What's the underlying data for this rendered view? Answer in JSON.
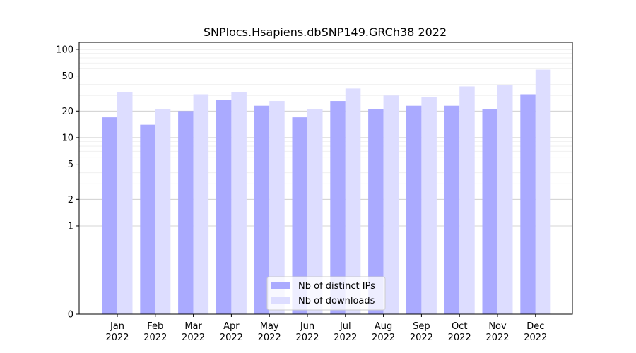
{
  "chart_data": {
    "type": "bar",
    "title": "SNPlocs.Hsapiens.dbSNP149.GRCh38 2022",
    "xlabel": "",
    "ylabel": "",
    "yscale": "symlog",
    "ylim": [
      0,
      120
    ],
    "yticks": [
      0,
      1,
      2,
      5,
      10,
      20,
      50,
      100
    ],
    "grid": "horizontal",
    "legend_position": "bottom-center",
    "categories": [
      [
        "Jan",
        "2022"
      ],
      [
        "Feb",
        "2022"
      ],
      [
        "Mar",
        "2022"
      ],
      [
        "Apr",
        "2022"
      ],
      [
        "May",
        "2022"
      ],
      [
        "Jun",
        "2022"
      ],
      [
        "Jul",
        "2022"
      ],
      [
        "Aug",
        "2022"
      ],
      [
        "Sep",
        "2022"
      ],
      [
        "Oct",
        "2022"
      ],
      [
        "Nov",
        "2022"
      ],
      [
        "Dec",
        "2022"
      ]
    ],
    "series": [
      {
        "name": "Nb of distinct IPs",
        "color": "#aaaaff",
        "values": [
          17,
          14,
          20,
          27,
          23,
          17,
          26,
          21,
          23,
          23,
          21,
          31
        ]
      },
      {
        "name": "Nb of downloads",
        "color": "#ddddff",
        "values": [
          33,
          21,
          31,
          33,
          26,
          21,
          36,
          30,
          29,
          38,
          39,
          59
        ]
      }
    ]
  }
}
